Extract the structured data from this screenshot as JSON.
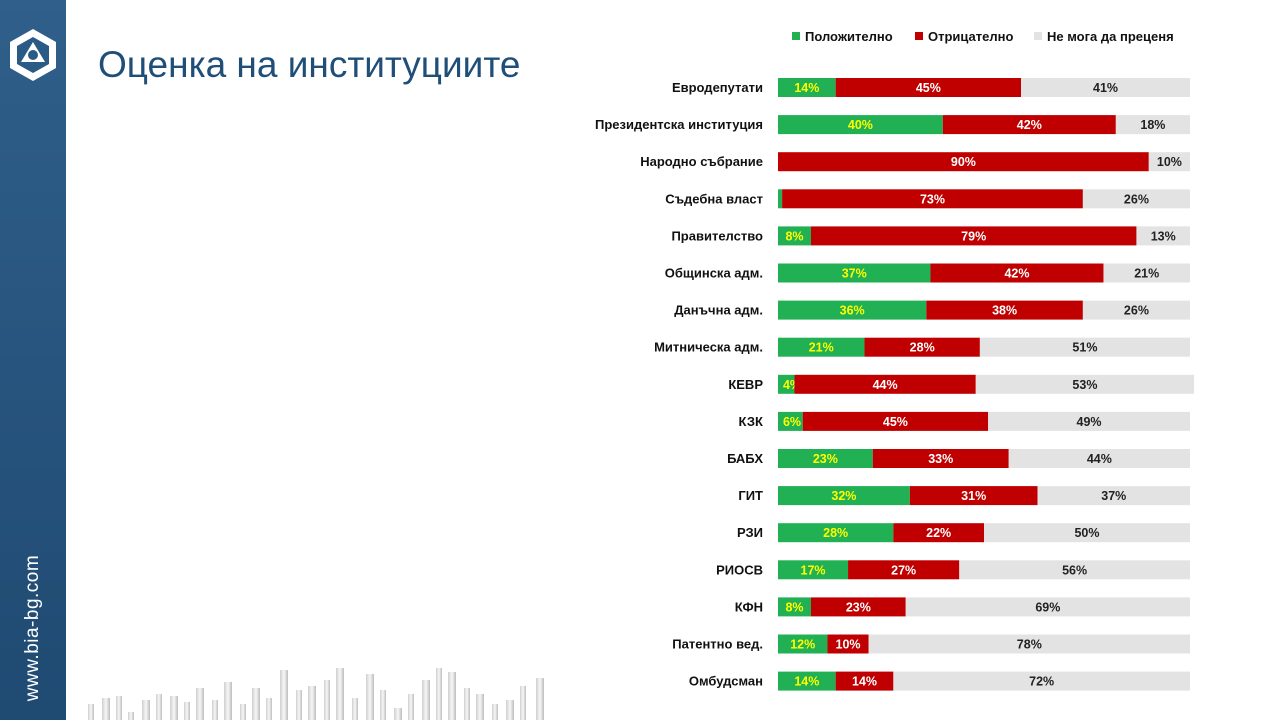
{
  "page": {
    "title": "Оценка на институциите",
    "site_url": "www.bia-bg.com",
    "accent_color": "#1f4e79",
    "sidebar_color": "#2a5a86"
  },
  "chart_data": {
    "type": "bar",
    "orientation": "horizontal",
    "stacked": true,
    "percent": true,
    "title": "",
    "xlabel": "",
    "ylabel": "",
    "xlim": [
      0,
      100
    ],
    "legend_position": "top",
    "categories": [
      "Евродепутати",
      "Президентска институция",
      "Народно събрание",
      "Съдебна власт",
      "Правителство",
      "Общинска адм.",
      "Данъчна адм.",
      "Митническа адм.",
      "КЕВР",
      "КЗК",
      "БАБХ",
      "ГИТ",
      "РЗИ",
      "РИОСВ",
      "КФН",
      "Патентно вед.",
      "Омбудсман"
    ],
    "series": [
      {
        "name": "Положително",
        "color": "#21b053",
        "label_color": "#ffff00",
        "values": [
          14,
          40,
          0,
          1,
          8,
          37,
          36,
          21,
          4,
          6,
          23,
          32,
          28,
          17,
          8,
          12,
          14
        ]
      },
      {
        "name": "Отрицателно",
        "color": "#c00000",
        "label_color": "#ffffff",
        "values": [
          45,
          42,
          90,
          73,
          79,
          42,
          38,
          28,
          44,
          45,
          33,
          31,
          22,
          27,
          23,
          10,
          14
        ]
      },
      {
        "name": "Не мога да преценя",
        "color": "#e3e3e3",
        "label_color": "#222222",
        "values": [
          41,
          18,
          10,
          26,
          13,
          21,
          26,
          51,
          53,
          49,
          44,
          37,
          50,
          56,
          69,
          78,
          72
        ]
      }
    ]
  }
}
